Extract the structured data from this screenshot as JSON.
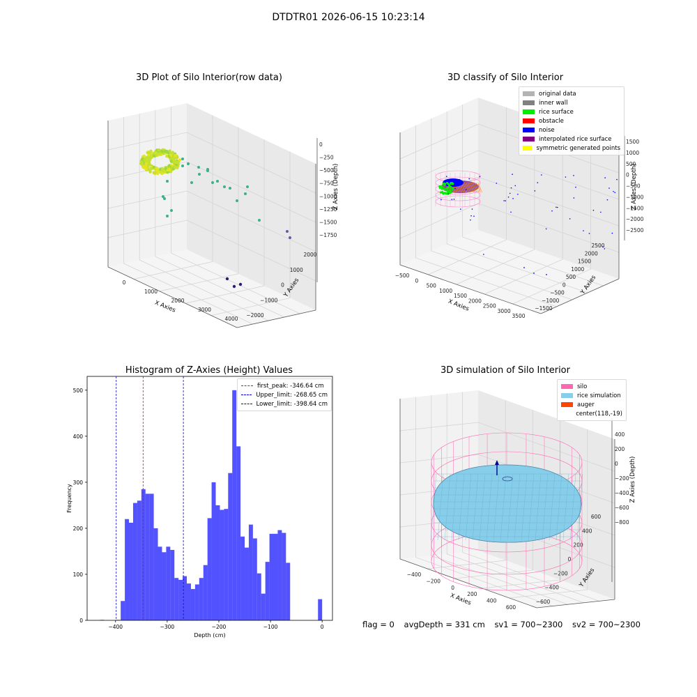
{
  "suptitle": "DTDTR01 2026-06-15 10:23:14",
  "panels": {
    "raw": {
      "title": "3D Plot of Silo Interior(row data)",
      "xlabel": "X Axies",
      "ylabel": "Y Axies",
      "zlabel": "Z Axies (Depth)",
      "xticks": [
        "0",
        "1000",
        "2000",
        "3000",
        "4000"
      ],
      "yticks": [
        "−2000",
        "−1000",
        "0",
        "1000",
        "2000"
      ],
      "zticks": [
        "0",
        "−250",
        "−500",
        "−750",
        "−1000",
        "−1250",
        "−1500",
        "−1750"
      ]
    },
    "classify": {
      "title": "3D classify of Silo Interior",
      "xlabel": "X Axies",
      "ylabel": "Y Axies",
      "zlabel": "Z Axies (Depth)",
      "xticks": [
        "−500",
        "0",
        "500",
        "1000",
        "1500",
        "2000",
        "2500",
        "3000",
        "3500"
      ],
      "yticks": [
        "−1500",
        "−1000",
        "−500",
        "0",
        "500",
        "1000",
        "1500",
        "2000",
        "2500"
      ],
      "zticks": [
        "1500",
        "1000",
        "500",
        "0",
        "−500",
        "−1000",
        "−1500",
        "−2000",
        "−2500"
      ],
      "legend": [
        {
          "label": "original data",
          "color": "#b3b3b3"
        },
        {
          "label": "inner wall",
          "color": "#808080"
        },
        {
          "label": "rice surface",
          "color": "#00ee00"
        },
        {
          "label": "obstacle",
          "color": "#ff0000"
        },
        {
          "label": "noise",
          "color": "#0000ff"
        },
        {
          "label": "interpolated rice surface",
          "color": "#800080"
        },
        {
          "label": "symmetric generated points",
          "color": "#ffff00"
        }
      ]
    },
    "simulation": {
      "title": "3D simulation of Silo Interior",
      "xlabel": "X Axies",
      "ylabel": "Y Axies",
      "zlabel": "Z Axies (Depth)",
      "xticks": [
        "−400",
        "−200",
        "0",
        "200",
        "400",
        "600"
      ],
      "yticks": [
        "−600",
        "−400",
        "−200",
        "0",
        "200",
        "400",
        "600"
      ],
      "zticks": [
        "400",
        "200",
        "0",
        "−200",
        "−400",
        "−600",
        "−800"
      ],
      "legend": [
        {
          "label": "silo",
          "color": "#ff69b4"
        },
        {
          "label": "rice simulation",
          "color": "#87ceeb"
        },
        {
          "label": "auger",
          "color": "#ff4500"
        },
        {
          "label": "center(118,-19)",
          "color": "none"
        }
      ]
    }
  },
  "chart_data": {
    "type": "bar",
    "title": "Histogram of Z-Axies (Height) Values",
    "xlabel": "Depth (cm)",
    "ylabel": "Frequency",
    "xlim": [
      -455,
      20
    ],
    "ylim": [
      0,
      530
    ],
    "xticks": [
      -400,
      -300,
      -200,
      -100,
      0
    ],
    "yticks": [
      0,
      100,
      200,
      300,
      400,
      500
    ],
    "bin_width": 8,
    "bins": [
      {
        "x": -430,
        "v": 1
      },
      {
        "x": -399,
        "v": 1
      },
      {
        "x": -390,
        "v": 42
      },
      {
        "x": -382,
        "v": 220
      },
      {
        "x": -374,
        "v": 212
      },
      {
        "x": -366,
        "v": 255
      },
      {
        "x": -358,
        "v": 260
      },
      {
        "x": -350,
        "v": 285
      },
      {
        "x": -342,
        "v": 275
      },
      {
        "x": -334,
        "v": 275
      },
      {
        "x": -326,
        "v": 200
      },
      {
        "x": -318,
        "v": 160
      },
      {
        "x": -310,
        "v": 148
      },
      {
        "x": -302,
        "v": 160
      },
      {
        "x": -294,
        "v": 153
      },
      {
        "x": -286,
        "v": 92
      },
      {
        "x": -278,
        "v": 88
      },
      {
        "x": -270,
        "v": 96
      },
      {
        "x": -262,
        "v": 80
      },
      {
        "x": -254,
        "v": 68
      },
      {
        "x": -246,
        "v": 78
      },
      {
        "x": -238,
        "v": 92
      },
      {
        "x": -230,
        "v": 120
      },
      {
        "x": -222,
        "v": 222
      },
      {
        "x": -214,
        "v": 300
      },
      {
        "x": -206,
        "v": 250
      },
      {
        "x": -198,
        "v": 240
      },
      {
        "x": -190,
        "v": 242
      },
      {
        "x": -182,
        "v": 320
      },
      {
        "x": -174,
        "v": 500
      },
      {
        "x": -166,
        "v": 378
      },
      {
        "x": -158,
        "v": 182
      },
      {
        "x": -150,
        "v": 158
      },
      {
        "x": -142,
        "v": 208
      },
      {
        "x": -134,
        "v": 178
      },
      {
        "x": -126,
        "v": 102
      },
      {
        "x": -118,
        "v": 58
      },
      {
        "x": -110,
        "v": 127
      },
      {
        "x": -102,
        "v": 188
      },
      {
        "x": -94,
        "v": 188
      },
      {
        "x": -86,
        "v": 196
      },
      {
        "x": -78,
        "v": 190
      },
      {
        "x": -70,
        "v": 125
      },
      {
        "x": -62,
        "v": 0
      },
      {
        "x": -8,
        "v": 46
      }
    ],
    "lines": [
      {
        "name": "first_peak: -346.64 cm",
        "x": -346.64,
        "color": "#ff0000"
      },
      {
        "name": "Upper_limit: -268.65 cm",
        "x": -268.65,
        "color": "#0000cc"
      },
      {
        "name": "Lower_limit: -398.64 cm",
        "x": -398.64,
        "color": "#0000cc"
      }
    ],
    "bar_color": "#0000ff"
  },
  "footer": {
    "flag": "flag = 0",
    "avg": "avgDepth = 331 cm",
    "sv1": "sv1 = 700~2300",
    "sv2": "sv2 = 700~2300"
  }
}
